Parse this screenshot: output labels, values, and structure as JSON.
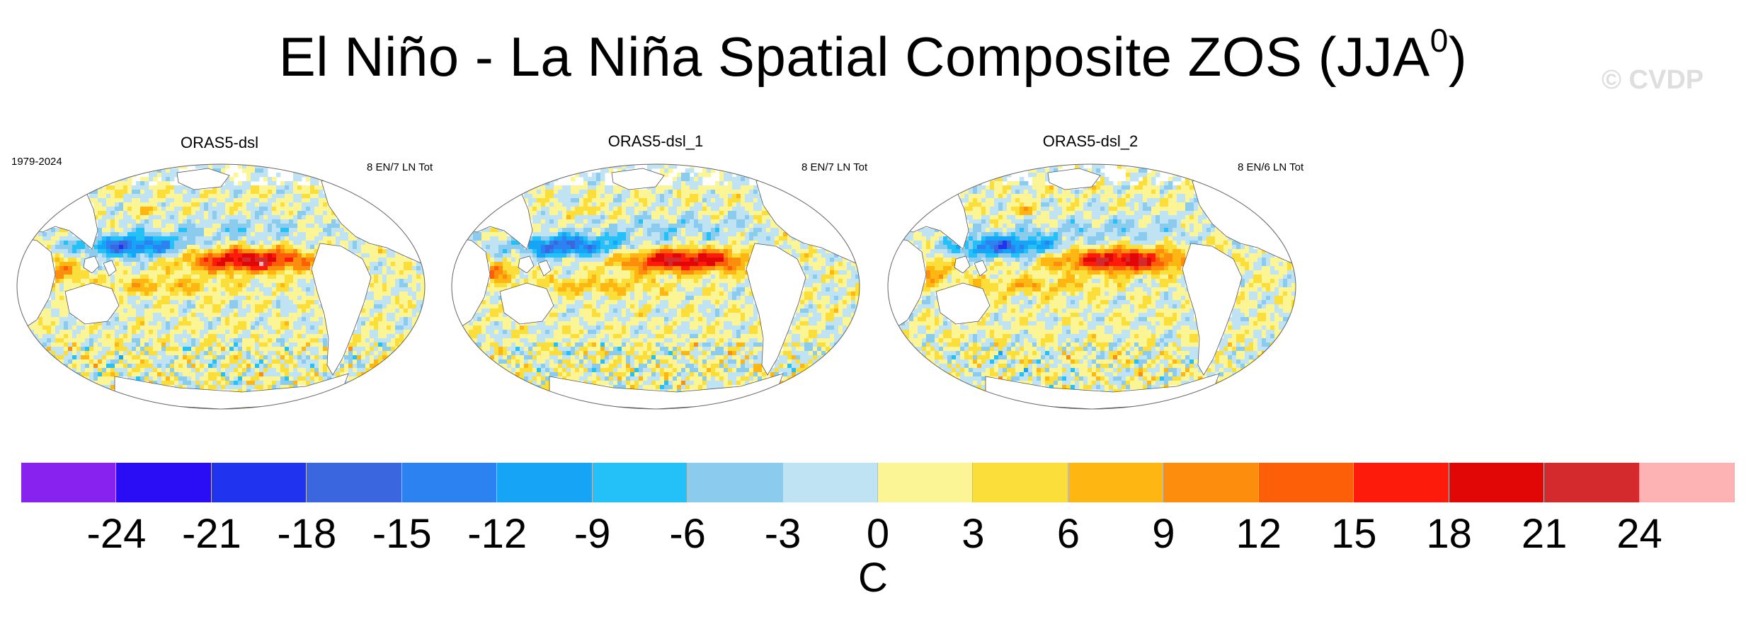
{
  "title_main": "El Niño - La Niña Spatial Composite ZOS (JJA",
  "title_sup": "0",
  "title_end": ")",
  "watermark": "© CVDP",
  "period": "1979-2024",
  "panels": [
    {
      "name": "ORAS5-dsl",
      "count": "8 EN/7 LN Tot"
    },
    {
      "name": "ORAS5-dsl_1",
      "count": "8 EN/7 LN Tot"
    },
    {
      "name": "ORAS5-dsl_2",
      "count": "8 EN/6 LN Tot"
    }
  ],
  "colorbar": {
    "colors": [
      "#8722ef",
      "#2a0cf5",
      "#2033ef",
      "#3a66e0",
      "#2b82f0",
      "#15a4f6",
      "#24c0f8",
      "#8acbee",
      "#bfe3f3",
      "#fbf595",
      "#fbde3a",
      "#fdb612",
      "#fd8e0d",
      "#fd5f08",
      "#fd1b0c",
      "#e10707",
      "#d42a2d",
      "#fdb3b3"
    ],
    "ticks": [
      "-24",
      "-21",
      "-18",
      "-15",
      "-12",
      "-9",
      "-6",
      "-3",
      "0",
      "3",
      "6",
      "9",
      "12",
      "15",
      "18",
      "21",
      "24"
    ],
    "units": "C"
  }
}
